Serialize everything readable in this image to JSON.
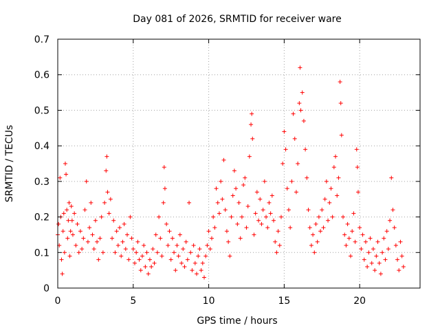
{
  "chart_data": {
    "type": "scatter",
    "title": "Day 081 of 2026, SRMTID for receiver ware",
    "xlabel": "GPS time / hours",
    "ylabel": "SRMTID / TECUs",
    "xlim": [
      0,
      24
    ],
    "ylim": [
      0,
      0.7
    ],
    "xticks": [
      0,
      5,
      10,
      15,
      20
    ],
    "yticks": [
      0,
      0.1,
      0.2,
      0.3,
      0.4,
      0.5,
      0.6,
      0.7
    ],
    "grid": true,
    "marker": "+",
    "color": "#ff0000",
    "series": [
      {
        "name": "SRMTID",
        "points": [
          [
            0.0,
            0.15
          ],
          [
            0.05,
            0.18
          ],
          [
            0.1,
            0.12
          ],
          [
            0.15,
            0.31
          ],
          [
            0.2,
            0.2
          ],
          [
            0.25,
            0.08
          ],
          [
            0.3,
            0.04
          ],
          [
            0.35,
            0.16
          ],
          [
            0.4,
            0.21
          ],
          [
            0.45,
            0.1
          ],
          [
            0.5,
            0.35
          ],
          [
            0.55,
            0.32
          ],
          [
            0.6,
            0.22
          ],
          [
            0.65,
            0.14
          ],
          [
            0.7,
            0.19
          ],
          [
            0.75,
            0.24
          ],
          [
            0.8,
            0.09
          ],
          [
            0.85,
            0.16
          ],
          [
            0.9,
            0.23
          ],
          [
            0.95,
            0.19
          ],
          [
            1.0,
            0.15
          ],
          [
            1.1,
            0.21
          ],
          [
            1.2,
            0.12
          ],
          [
            1.3,
            0.18
          ],
          [
            1.4,
            0.1
          ],
          [
            1.5,
            0.16
          ],
          [
            1.6,
            0.11
          ],
          [
            1.7,
            0.14
          ],
          [
            1.8,
            0.22
          ],
          [
            1.9,
            0.3
          ],
          [
            2.0,
            0.13
          ],
          [
            2.1,
            0.17
          ],
          [
            2.2,
            0.24
          ],
          [
            2.3,
            0.15
          ],
          [
            2.4,
            0.11
          ],
          [
            2.5,
            0.19
          ],
          [
            2.6,
            0.13
          ],
          [
            2.7,
            0.08
          ],
          [
            2.8,
            0.14
          ],
          [
            2.9,
            0.2
          ],
          [
            3.0,
            0.1
          ],
          [
            3.1,
            0.24
          ],
          [
            3.2,
            0.33
          ],
          [
            3.25,
            0.37
          ],
          [
            3.3,
            0.27
          ],
          [
            3.4,
            0.21
          ],
          [
            3.5,
            0.25
          ],
          [
            3.6,
            0.14
          ],
          [
            3.7,
            0.19
          ],
          [
            3.8,
            0.1
          ],
          [
            3.9,
            0.16
          ],
          [
            4.0,
            0.12
          ],
          [
            4.1,
            0.17
          ],
          [
            4.2,
            0.09
          ],
          [
            4.3,
            0.13
          ],
          [
            4.4,
            0.18
          ],
          [
            4.5,
            0.11
          ],
          [
            4.6,
            0.15
          ],
          [
            4.7,
            0.08
          ],
          [
            4.8,
            0.2
          ],
          [
            4.9,
            0.14
          ],
          [
            5.0,
            0.11
          ],
          [
            5.1,
            0.07
          ],
          [
            5.2,
            0.1
          ],
          [
            5.3,
            0.13
          ],
          [
            5.4,
            0.08
          ],
          [
            5.5,
            0.05
          ],
          [
            5.6,
            0.09
          ],
          [
            5.7,
            0.12
          ],
          [
            5.8,
            0.06
          ],
          [
            5.9,
            0.1
          ],
          [
            6.0,
            0.04
          ],
          [
            6.1,
            0.08
          ],
          [
            6.2,
            0.06
          ],
          [
            6.3,
            0.11
          ],
          [
            6.4,
            0.07
          ],
          [
            6.5,
            0.15
          ],
          [
            6.6,
            0.1
          ],
          [
            6.7,
            0.2
          ],
          [
            6.8,
            0.14
          ],
          [
            6.9,
            0.09
          ],
          [
            7.0,
            0.24
          ],
          [
            7.05,
            0.34
          ],
          [
            7.1,
            0.28
          ],
          [
            7.2,
            0.18
          ],
          [
            7.3,
            0.12
          ],
          [
            7.4,
            0.16
          ],
          [
            7.5,
            0.08
          ],
          [
            7.6,
            0.14
          ],
          [
            7.7,
            0.1
          ],
          [
            7.8,
            0.05
          ],
          [
            7.9,
            0.12
          ],
          [
            8.0,
            0.09
          ],
          [
            8.1,
            0.15
          ],
          [
            8.2,
            0.07
          ],
          [
            8.3,
            0.11
          ],
          [
            8.4,
            0.06
          ],
          [
            8.5,
            0.13
          ],
          [
            8.6,
            0.08
          ],
          [
            8.7,
            0.24
          ],
          [
            8.8,
            0.1
          ],
          [
            8.9,
            0.05
          ],
          [
            9.0,
            0.12
          ],
          [
            9.1,
            0.07
          ],
          [
            9.2,
            0.04
          ],
          [
            9.3,
            0.09
          ],
          [
            9.4,
            0.11
          ],
          [
            9.5,
            0.05
          ],
          [
            9.6,
            0.07
          ],
          [
            9.7,
            0.03
          ],
          [
            9.8,
            0.09
          ],
          [
            9.9,
            0.12
          ],
          [
            10.0,
            0.16
          ],
          [
            10.1,
            0.11
          ],
          [
            10.2,
            0.14
          ],
          [
            10.3,
            0.2
          ],
          [
            10.4,
            0.17
          ],
          [
            10.5,
            0.28
          ],
          [
            10.6,
            0.24
          ],
          [
            10.7,
            0.21
          ],
          [
            10.8,
            0.3
          ],
          [
            10.9,
            0.25
          ],
          [
            11.0,
            0.36
          ],
          [
            11.1,
            0.22
          ],
          [
            11.2,
            0.16
          ],
          [
            11.3,
            0.13
          ],
          [
            11.4,
            0.09
          ],
          [
            11.5,
            0.2
          ],
          [
            11.6,
            0.26
          ],
          [
            11.7,
            0.33
          ],
          [
            11.8,
            0.28
          ],
          [
            11.9,
            0.18
          ],
          [
            12.0,
            0.24
          ],
          [
            12.1,
            0.14
          ],
          [
            12.2,
            0.2
          ],
          [
            12.3,
            0.29
          ],
          [
            12.4,
            0.31
          ],
          [
            12.5,
            0.17
          ],
          [
            12.6,
            0.23
          ],
          [
            12.7,
            0.37
          ],
          [
            12.8,
            0.46
          ],
          [
            12.85,
            0.49
          ],
          [
            12.9,
            0.42
          ],
          [
            13.0,
            0.15
          ],
          [
            13.1,
            0.21
          ],
          [
            13.2,
            0.27
          ],
          [
            13.3,
            0.19
          ],
          [
            13.4,
            0.25
          ],
          [
            13.5,
            0.18
          ],
          [
            13.6,
            0.22
          ],
          [
            13.7,
            0.3
          ],
          [
            13.8,
            0.2
          ],
          [
            13.9,
            0.17
          ],
          [
            14.0,
            0.24
          ],
          [
            14.1,
            0.21
          ],
          [
            14.2,
            0.26
          ],
          [
            14.3,
            0.19
          ],
          [
            14.4,
            0.13
          ],
          [
            14.5,
            0.1
          ],
          [
            14.6,
            0.16
          ],
          [
            14.7,
            0.12
          ],
          [
            14.8,
            0.2
          ],
          [
            14.9,
            0.35
          ],
          [
            15.0,
            0.44
          ],
          [
            15.1,
            0.39
          ],
          [
            15.2,
            0.28
          ],
          [
            15.3,
            0.22
          ],
          [
            15.4,
            0.17
          ],
          [
            15.5,
            0.3
          ],
          [
            15.6,
            0.49
          ],
          [
            15.7,
            0.42
          ],
          [
            15.8,
            0.27
          ],
          [
            15.9,
            0.35
          ],
          [
            16.0,
            0.52
          ],
          [
            16.05,
            0.62
          ],
          [
            16.1,
            0.5
          ],
          [
            16.2,
            0.55
          ],
          [
            16.3,
            0.47
          ],
          [
            16.4,
            0.39
          ],
          [
            16.5,
            0.31
          ],
          [
            16.6,
            0.22
          ],
          [
            16.7,
            0.17
          ],
          [
            16.8,
            0.12
          ],
          [
            16.9,
            0.15
          ],
          [
            17.0,
            0.1
          ],
          [
            17.1,
            0.18
          ],
          [
            17.2,
            0.13
          ],
          [
            17.3,
            0.2
          ],
          [
            17.4,
            0.16
          ],
          [
            17.5,
            0.22
          ],
          [
            17.6,
            0.17
          ],
          [
            17.7,
            0.25
          ],
          [
            17.8,
            0.3
          ],
          [
            17.9,
            0.19
          ],
          [
            18.0,
            0.24
          ],
          [
            18.1,
            0.28
          ],
          [
            18.2,
            0.2
          ],
          [
            18.3,
            0.34
          ],
          [
            18.4,
            0.37
          ],
          [
            18.5,
            0.26
          ],
          [
            18.6,
            0.31
          ],
          [
            18.7,
            0.58
          ],
          [
            18.75,
            0.52
          ],
          [
            18.8,
            0.43
          ],
          [
            18.9,
            0.2
          ],
          [
            19.0,
            0.15
          ],
          [
            19.1,
            0.12
          ],
          [
            19.2,
            0.18
          ],
          [
            19.3,
            0.14
          ],
          [
            19.4,
            0.09
          ],
          [
            19.5,
            0.16
          ],
          [
            19.6,
            0.21
          ],
          [
            19.7,
            0.13
          ],
          [
            19.8,
            0.39
          ],
          [
            19.85,
            0.34
          ],
          [
            19.9,
            0.27
          ],
          [
            20.0,
            0.17
          ],
          [
            20.1,
            0.11
          ],
          [
            20.2,
            0.15
          ],
          [
            20.3,
            0.08
          ],
          [
            20.4,
            0.13
          ],
          [
            20.5,
            0.06
          ],
          [
            20.6,
            0.1
          ],
          [
            20.7,
            0.14
          ],
          [
            20.8,
            0.07
          ],
          [
            20.9,
            0.11
          ],
          [
            21.0,
            0.05
          ],
          [
            21.1,
            0.09
          ],
          [
            21.2,
            0.13
          ],
          [
            21.3,
            0.07
          ],
          [
            21.4,
            0.04
          ],
          [
            21.5,
            0.1
          ],
          [
            21.6,
            0.14
          ],
          [
            21.7,
            0.08
          ],
          [
            21.8,
            0.16
          ],
          [
            21.9,
            0.11
          ],
          [
            22.0,
            0.19
          ],
          [
            22.1,
            0.31
          ],
          [
            22.2,
            0.22
          ],
          [
            22.3,
            0.17
          ],
          [
            22.4,
            0.12
          ],
          [
            22.5,
            0.08
          ],
          [
            22.6,
            0.05
          ],
          [
            22.7,
            0.13
          ],
          [
            22.8,
            0.09
          ],
          [
            22.9,
            0.06
          ]
        ]
      }
    ]
  }
}
